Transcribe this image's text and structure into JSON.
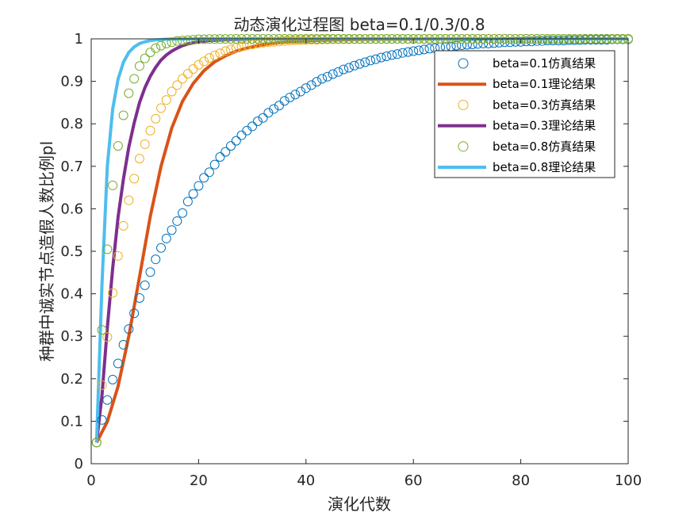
{
  "chart_data": {
    "type": "line",
    "title": "动态演化过程图 beta=0.1/0.3/0.8",
    "xlabel": "演化代数",
    "ylabel": "种群中诚实节点造假人数比例pl",
    "xlim": [
      0,
      100
    ],
    "ylim": [
      0,
      1
    ],
    "x_ticks": [
      0,
      20,
      40,
      60,
      80,
      100
    ],
    "y_ticks": [
      0,
      0.1,
      0.2,
      0.3,
      0.4,
      0.5,
      0.6,
      0.7,
      0.8,
      0.9,
      1
    ],
    "y_tick_labels": [
      "0",
      "0.1",
      "0.2",
      "0.3",
      "0.4",
      "0.5",
      "0.6",
      "0.7",
      "0.8",
      "0.9",
      "1"
    ],
    "grid": false,
    "legend_position": "top-right",
    "series": [
      {
        "name": "beta=0.1仿真结果",
        "style": "markers",
        "color": "#0072BD",
        "x": [
          1,
          2,
          3,
          4,
          5,
          6,
          7,
          8,
          9,
          10,
          11,
          12,
          13,
          14,
          15,
          16,
          17,
          18,
          19,
          20,
          21,
          22,
          23,
          24,
          25,
          26,
          27,
          28,
          29,
          30,
          31,
          32,
          33,
          34,
          35,
          36,
          37,
          38,
          39,
          40,
          41,
          42,
          43,
          44,
          45,
          46,
          47,
          48,
          49,
          50,
          51,
          52,
          53,
          54,
          55,
          56,
          57,
          58,
          59,
          60,
          61,
          62,
          63,
          64,
          65,
          66,
          67,
          68,
          69,
          70,
          71,
          72,
          73,
          74,
          75,
          76,
          77,
          78,
          79,
          80,
          81,
          82,
          83,
          84,
          85,
          86,
          87,
          88,
          89,
          90,
          91,
          92,
          93,
          94,
          95,
          96,
          97,
          98,
          99,
          100
        ],
        "values": [
          0.05,
          0.103,
          0.15,
          0.198,
          0.236,
          0.28,
          0.317,
          0.354,
          0.39,
          0.42,
          0.451,
          0.481,
          0.508,
          0.53,
          0.55,
          0.571,
          0.59,
          0.617,
          0.635,
          0.654,
          0.673,
          0.686,
          0.704,
          0.722,
          0.734,
          0.748,
          0.76,
          0.773,
          0.784,
          0.794,
          0.806,
          0.814,
          0.826,
          0.835,
          0.843,
          0.854,
          0.862,
          0.869,
          0.876,
          0.884,
          0.891,
          0.899,
          0.906,
          0.911,
          0.917,
          0.922,
          0.928,
          0.932,
          0.937,
          0.941,
          0.945,
          0.949,
          0.952,
          0.956,
          0.959,
          0.962,
          0.964,
          0.967,
          0.969,
          0.971,
          0.973,
          0.975,
          0.977,
          0.978,
          0.98,
          0.981,
          0.982,
          0.984,
          0.985,
          0.986,
          0.987,
          0.988,
          0.989,
          0.989,
          0.99,
          0.991,
          0.992,
          0.992,
          0.993,
          0.993,
          0.994,
          0.994,
          0.995,
          0.995,
          0.996,
          0.996,
          0.996,
          0.996,
          0.997,
          0.997,
          0.997,
          0.998,
          0.998,
          0.998,
          0.998,
          0.998,
          0.999,
          0.999,
          0.999,
          0.999
        ]
      },
      {
        "name": "beta=0.1理论结果",
        "style": "line",
        "color": "#D95319",
        "x": [
          1,
          3,
          5,
          7,
          9,
          11,
          13,
          15,
          17,
          19,
          21,
          23,
          25,
          27,
          29,
          31,
          33,
          35,
          37,
          39,
          41,
          43,
          45,
          47,
          50,
          55,
          60,
          65,
          70,
          80,
          90,
          100
        ],
        "values": [
          0.05,
          0.099,
          0.182,
          0.3,
          0.44,
          0.582,
          0.7,
          0.79,
          0.853,
          0.895,
          0.925,
          0.946,
          0.96,
          0.971,
          0.978,
          0.984,
          0.988,
          0.991,
          0.993,
          0.995,
          0.996,
          0.997,
          0.9975,
          0.998,
          0.9985,
          0.999,
          0.9993,
          0.9995,
          0.9996,
          0.9998,
          0.9999,
          1.0
        ]
      },
      {
        "name": "beta=0.3仿真结果",
        "style": "markers",
        "color": "#EDB120",
        "x": [
          1,
          2,
          3,
          4,
          5,
          6,
          7,
          8,
          9,
          10,
          11,
          12,
          13,
          14,
          15,
          16,
          17,
          18,
          19,
          20,
          21,
          22,
          23,
          24,
          25,
          26,
          27,
          28,
          29,
          30,
          31,
          32,
          33,
          34,
          35,
          36,
          37,
          38,
          39,
          40,
          41,
          42,
          43,
          44,
          45,
          46,
          47,
          48,
          49,
          50,
          51,
          52,
          53,
          54,
          55,
          56,
          57,
          58,
          59,
          60,
          61,
          62,
          63,
          64,
          65,
          66,
          67,
          68,
          69,
          70,
          71,
          72,
          73,
          74,
          75,
          76,
          77,
          78,
          79,
          80,
          81,
          82,
          83,
          84,
          85,
          86,
          87,
          88,
          89,
          90,
          91,
          92,
          93,
          94,
          95,
          96,
          97,
          98,
          99,
          100
        ],
        "values": [
          0.05,
          0.185,
          0.298,
          0.402,
          0.489,
          0.56,
          0.62,
          0.671,
          0.718,
          0.752,
          0.784,
          0.812,
          0.837,
          0.856,
          0.876,
          0.891,
          0.906,
          0.918,
          0.929,
          0.939,
          0.947,
          0.955,
          0.961,
          0.966,
          0.971,
          0.975,
          0.979,
          0.982,
          0.985,
          0.987,
          0.989,
          0.991,
          0.992,
          0.993,
          0.994,
          0.995,
          0.996,
          0.9965,
          0.997,
          0.9975,
          0.998,
          0.998,
          0.9985,
          0.9985,
          0.999,
          0.999,
          0.999,
          0.999,
          0.9993,
          0.9993,
          0.9995,
          0.9995,
          0.9995,
          0.9996,
          0.9996,
          0.9997,
          0.9997,
          0.9997,
          0.9998,
          0.9998,
          0.9998,
          0.9998,
          0.9998,
          0.9999,
          0.9999,
          0.9999,
          0.9999,
          0.9999,
          0.9999,
          0.9999,
          1,
          1,
          1,
          1,
          1,
          1,
          1,
          1,
          1,
          1,
          1,
          1,
          1,
          1,
          1,
          1,
          1,
          1,
          1,
          1,
          1,
          1,
          1,
          1,
          1,
          1,
          1,
          1,
          1,
          1
        ]
      },
      {
        "name": "beta=0.3理论结果",
        "style": "line",
        "color": "#7E2F8E",
        "x": [
          1,
          2,
          3,
          4,
          5,
          6,
          7,
          8,
          9,
          10,
          11,
          12,
          13,
          14,
          15,
          16,
          17,
          18,
          20,
          22,
          25,
          30,
          40,
          60,
          80,
          100
        ],
        "values": [
          0.05,
          0.16,
          0.32,
          0.46,
          0.58,
          0.67,
          0.745,
          0.802,
          0.85,
          0.885,
          0.912,
          0.933,
          0.95,
          0.962,
          0.971,
          0.978,
          0.984,
          0.988,
          0.993,
          0.996,
          0.998,
          0.9995,
          0.9999,
          1.0,
          1.0,
          1.0
        ]
      },
      {
        "name": "beta=0.8仿真结果",
        "style": "markers",
        "color": "#77AC30",
        "x": [
          1,
          2,
          3,
          4,
          5,
          6,
          7,
          8,
          9,
          10,
          11,
          12,
          13,
          14,
          15,
          16,
          17,
          18,
          19,
          20,
          21,
          22,
          23,
          24,
          25,
          26,
          27,
          28,
          29,
          30,
          31,
          32,
          33,
          34,
          35,
          36,
          37,
          38,
          39,
          40,
          41,
          42,
          43,
          44,
          45,
          46,
          47,
          48,
          49,
          50,
          51,
          52,
          53,
          54,
          55,
          56,
          57,
          58,
          59,
          60,
          61,
          62,
          63,
          64,
          65,
          66,
          67,
          68,
          69,
          70,
          71,
          72,
          73,
          74,
          75,
          76,
          77,
          78,
          79,
          80,
          81,
          82,
          83,
          84,
          85,
          86,
          87,
          88,
          89,
          90,
          91,
          92,
          93,
          94,
          95,
          96,
          97,
          98,
          99,
          100
        ],
        "values": [
          0.05,
          0.315,
          0.505,
          0.655,
          0.748,
          0.82,
          0.872,
          0.906,
          0.936,
          0.954,
          0.968,
          0.978,
          0.984,
          0.989,
          0.992,
          0.995,
          0.996,
          0.997,
          0.998,
          0.999,
          0.999,
          0.9995,
          0.9996,
          0.9997,
          0.9998,
          0.9998,
          0.9999,
          0.9999,
          0.9999,
          0.9999,
          1,
          1,
          1,
          1,
          1,
          1,
          1,
          1,
          1,
          1,
          1,
          1,
          1,
          1,
          1,
          1,
          1,
          1,
          1,
          1,
          1,
          1,
          1,
          1,
          1,
          1,
          1,
          1,
          1,
          1,
          1,
          1,
          1,
          1,
          1,
          1,
          1,
          1,
          1,
          1,
          1,
          1,
          1,
          1,
          1,
          1,
          1,
          1,
          1,
          1,
          1,
          1,
          1,
          1,
          1,
          1,
          1,
          1,
          1,
          1,
          1,
          1,
          1,
          1,
          1,
          1,
          1,
          1,
          1,
          1
        ]
      },
      {
        "name": "beta=0.8理论结果",
        "style": "line",
        "color": "#4DBEEE",
        "x": [
          1,
          2,
          3,
          4,
          5,
          6,
          7,
          8,
          9,
          10,
          11,
          12,
          14,
          16,
          18,
          20,
          25,
          30,
          40,
          60,
          80,
          100
        ],
        "values": [
          0.05,
          0.42,
          0.7,
          0.835,
          0.905,
          0.945,
          0.968,
          0.981,
          0.989,
          0.993,
          0.996,
          0.9975,
          0.999,
          0.9996,
          0.9998,
          0.9999,
          1.0,
          1.0,
          1.0,
          1.0,
          1.0,
          1.0
        ]
      }
    ]
  }
}
